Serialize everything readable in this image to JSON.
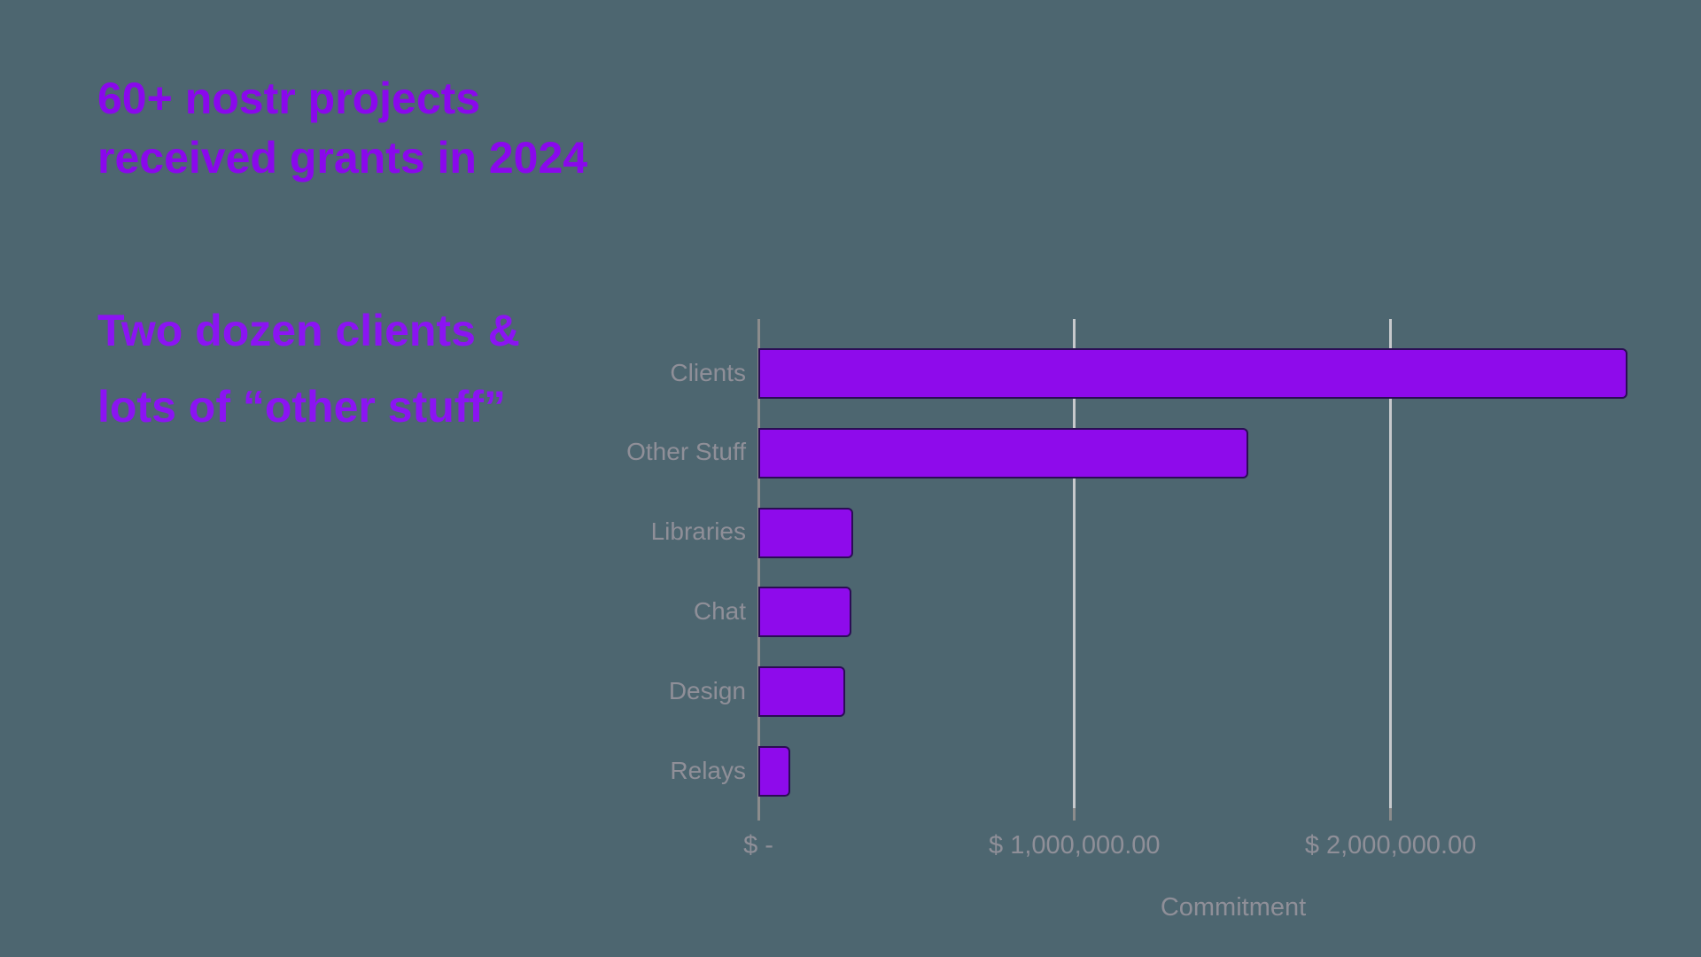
{
  "page": {
    "background_color": "#4d6670"
  },
  "header": {
    "title_line1": "60+ nostr projects",
    "title_line2": "received grants in 2024",
    "title_color": "#8a08ec",
    "subtitle_line1": "Two dozen clients &",
    "subtitle_line2": "lots of “other stuff”",
    "subtitle_color": "#8b14f2"
  },
  "chart_data": {
    "type": "bar",
    "orientation": "horizontal",
    "title": "",
    "categories": [
      "Clients",
      "Other Stuff",
      "Libraries",
      "Chat",
      "Design",
      "Relays"
    ],
    "values": [
      2750000,
      1550000,
      300000,
      295000,
      275000,
      100000
    ],
    "xlabel": "Commitment",
    "ylabel": "",
    "x_ticks": [
      {
        "value": 0,
        "label": "$ -"
      },
      {
        "value": 1000000,
        "label": "$ 1,000,000.00"
      },
      {
        "value": 2000000,
        "label": "$ 2,000,000.00"
      }
    ],
    "xlim": [
      0,
      2870000
    ],
    "grid": true,
    "legend": false,
    "bar_color": "#8e0beb",
    "bar_border_color": "#2b0d55",
    "gridline_color": "#c7c9cc",
    "axis_color": "#8c8c8c",
    "label_color": "#8f8f98"
  }
}
